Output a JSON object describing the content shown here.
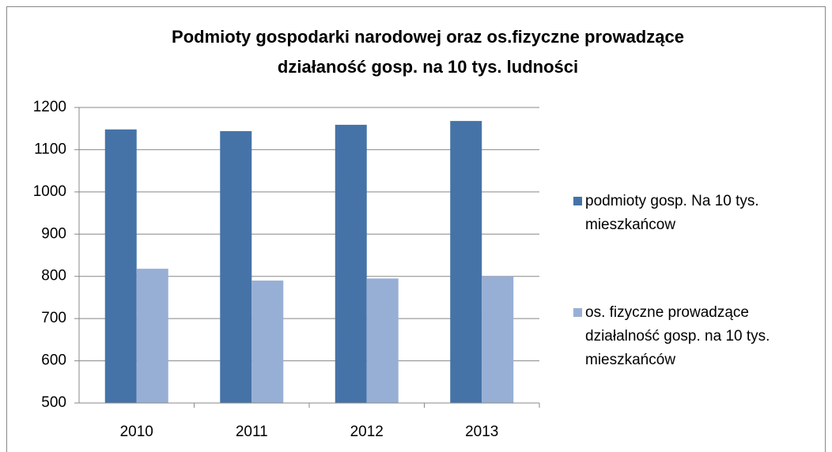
{
  "chart_data": {
    "type": "bar",
    "title": [
      "Podmioty gospodarki narodowej oraz os.fizyczne prowadzące",
      "działaność gosp. na 10 tys. ludności"
    ],
    "categories": [
      "2010",
      "2011",
      "2012",
      "2013"
    ],
    "series": [
      {
        "name": "podmioty gosp. Na 10 tys. mieszkańcow",
        "color": "#4573a7",
        "values": [
          1148,
          1144,
          1159,
          1168
        ]
      },
      {
        "name": "os. fizyczne prowadzące działalność gosp. na 10 tys. mieszkańców",
        "color": "#98afd5",
        "values": [
          818,
          790,
          795,
          800
        ]
      }
    ],
    "ylim": [
      500,
      1200
    ],
    "yticks": [
      500,
      600,
      700,
      800,
      900,
      1000,
      1100,
      1200
    ],
    "grid": true,
    "legend": "right"
  }
}
